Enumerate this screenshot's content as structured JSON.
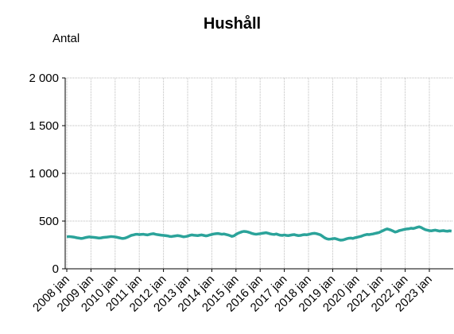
{
  "chart_data": {
    "type": "line",
    "title": "Hushåll",
    "y_label": "Antal",
    "categories": [
      "2008 jan",
      null,
      null,
      null,
      null,
      null,
      null,
      null,
      null,
      null,
      null,
      null,
      "2009 jan",
      null,
      null,
      null,
      null,
      null,
      null,
      null,
      null,
      null,
      null,
      null,
      "2010 jan",
      null,
      null,
      null,
      null,
      null,
      null,
      null,
      null,
      null,
      null,
      null,
      "2011 jan",
      null,
      null,
      null,
      null,
      null,
      null,
      null,
      null,
      null,
      null,
      null,
      "2012 jan",
      null,
      null,
      null,
      null,
      null,
      null,
      null,
      null,
      null,
      null,
      null,
      "2013 jan",
      null,
      null,
      null,
      null,
      null,
      null,
      null,
      null,
      null,
      null,
      null,
      "2014 jan",
      null,
      null,
      null,
      null,
      null,
      null,
      null,
      null,
      null,
      null,
      null,
      "2015 jan",
      null,
      null,
      null,
      null,
      null,
      null,
      null,
      null,
      null,
      null,
      null,
      "2016 jan",
      null,
      null,
      null,
      null,
      null,
      null,
      null,
      null,
      null,
      null,
      null,
      "2017 jan",
      null,
      null,
      null,
      null,
      null,
      null,
      null,
      null,
      null,
      null,
      null,
      "2018 jan",
      null,
      null,
      null,
      null,
      null,
      null,
      null,
      null,
      null,
      null,
      null,
      "2019 jan",
      null,
      null,
      null,
      null,
      null,
      null,
      null,
      null,
      null,
      null,
      null,
      "2020 jan",
      null,
      null,
      null,
      null,
      null,
      null,
      null,
      null,
      null,
      null,
      null,
      "2021 jan",
      null,
      null,
      null,
      null,
      null,
      null,
      null,
      null,
      null,
      null,
      null,
      "2022 jan",
      null,
      null,
      null,
      null,
      null,
      null,
      null,
      null,
      null,
      null,
      null,
      "2023 jan",
      null,
      null,
      null,
      null,
      null,
      null,
      null,
      null,
      null,
      null,
      null
    ],
    "values": [
      335,
      338,
      336,
      333,
      330,
      325,
      322,
      318,
      320,
      326,
      330,
      334,
      332,
      330,
      328,
      325,
      322,
      324,
      328,
      330,
      332,
      335,
      338,
      336,
      334,
      330,
      325,
      320,
      318,
      322,
      330,
      340,
      350,
      355,
      360,
      362,
      358,
      360,
      362,
      358,
      355,
      360,
      365,
      368,
      362,
      358,
      355,
      352,
      350,
      348,
      345,
      340,
      338,
      342,
      345,
      348,
      345,
      340,
      335,
      338,
      342,
      350,
      355,
      352,
      350,
      348,
      352,
      355,
      350,
      345,
      348,
      355,
      360,
      365,
      368,
      370,
      366,
      362,
      365,
      360,
      355,
      348,
      340,
      345,
      360,
      372,
      380,
      388,
      392,
      390,
      385,
      378,
      370,
      365,
      362,
      365,
      368,
      372,
      375,
      378,
      372,
      366,
      362,
      360,
      365,
      358,
      352,
      350,
      355,
      350,
      348,
      352,
      356,
      358,
      352,
      348,
      350,
      355,
      358,
      356,
      360,
      365,
      370,
      372,
      368,
      362,
      355,
      340,
      325,
      315,
      310,
      312,
      315,
      318,
      312,
      305,
      300,
      302,
      308,
      315,
      320,
      322,
      318,
      325,
      330,
      335,
      340,
      348,
      355,
      360,
      358,
      362,
      365,
      370,
      375,
      380,
      390,
      400,
      410,
      418,
      412,
      405,
      395,
      385,
      390,
      400,
      405,
      410,
      415,
      418,
      420,
      425,
      422,
      428,
      435,
      440,
      432,
      420,
      410,
      405,
      400,
      398,
      402,
      405,
      400,
      395,
      398,
      400,
      396,
      394,
      398,
      395
    ],
    "color": "#2ba39a",
    "ylim": [
      0,
      2000
    ],
    "yticks": [
      0,
      500,
      {
        "value": 1000,
        "label": "1 000"
      },
      {
        "value": 1500,
        "label": "1 500"
      },
      {
        "value": 2000,
        "label": "2 000"
      }
    ],
    "grid": true
  }
}
